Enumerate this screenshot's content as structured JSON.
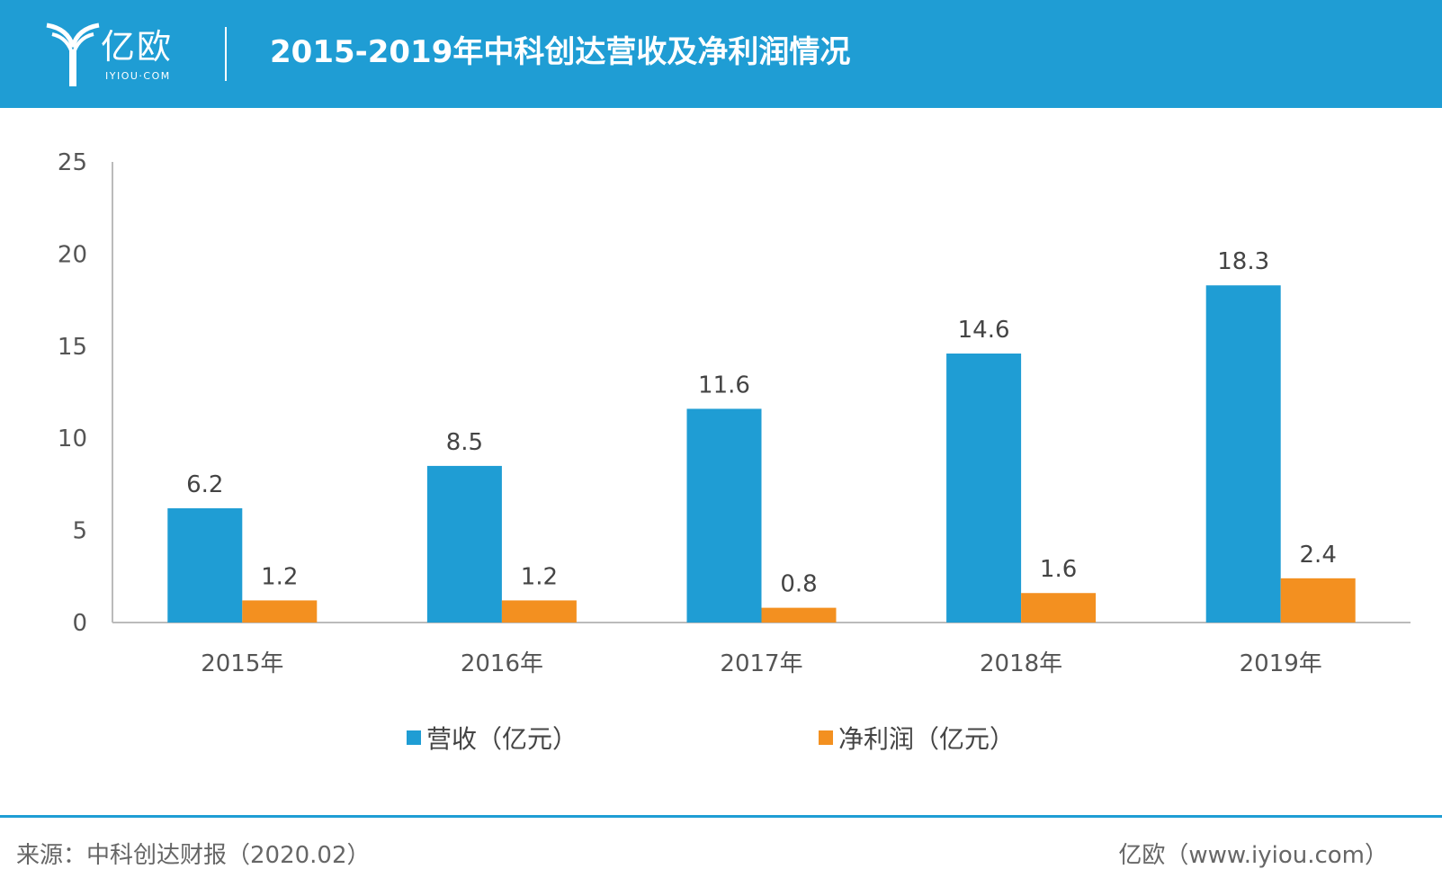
{
  "header": {
    "logo_text": "亿欧",
    "logo_sub": "IYIOU·COM",
    "title": "2015-2019年中科创达营收及净利润情况"
  },
  "colors": {
    "header_bg": "#1f9dd4",
    "revenue": "#1f9dd4",
    "net_profit": "#f39020"
  },
  "chart_data": {
    "type": "bar",
    "categories": [
      "2015年",
      "2016年",
      "2017年",
      "2018年",
      "2019年"
    ],
    "series": [
      {
        "name": "营收（亿元）",
        "values": [
          6.2,
          8.5,
          11.6,
          14.6,
          18.3
        ]
      },
      {
        "name": "净利润（亿元）",
        "values": [
          1.2,
          1.2,
          0.8,
          1.6,
          2.4
        ]
      }
    ],
    "ylim": [
      0,
      25
    ],
    "yticks": [
      0,
      5,
      10,
      15,
      20,
      25
    ],
    "legend": "bottom",
    "grid": false
  },
  "footer": {
    "source": "来源：中科创达财报（2020.02）",
    "site": "亿欧（www.iyiou.com）"
  }
}
